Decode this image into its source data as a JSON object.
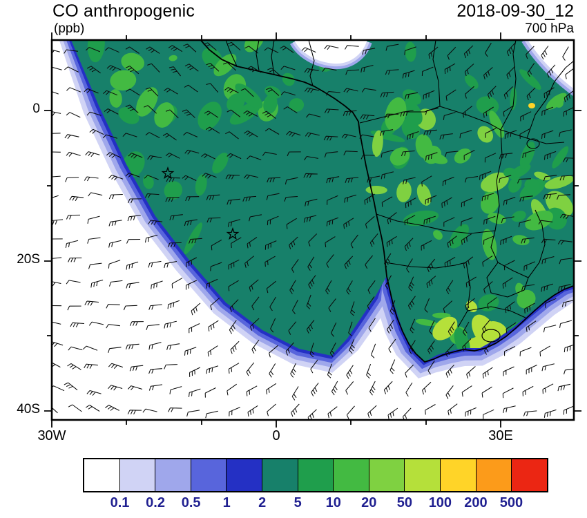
{
  "header": {
    "title": "CO anthropogenic",
    "units_label": "(ppb)",
    "timestamp": "2018-09-30_12",
    "level": "700 hPa"
  },
  "map": {
    "y_axis": {
      "labels": [
        "0",
        "20S",
        "40S"
      ]
    },
    "x_axis": {
      "labels": [
        "30W",
        "0",
        "30E"
      ]
    }
  },
  "colorbar": {
    "levels": [
      "0.1",
      "0.2",
      "0.5",
      "1",
      "2",
      "5",
      "10",
      "20",
      "50",
      "100",
      "200",
      "500"
    ],
    "colors": [
      "#FFFFFF",
      "#D0D3F5",
      "#9FA7EB",
      "#5865DC",
      "#2430C4",
      "#17806A",
      "#1F9E4C",
      "#43BA42",
      "#7FD141",
      "#B5E03A",
      "#FFD428",
      "#FC9B1A",
      "#EB2613"
    ],
    "label_color": "#1F1F90"
  },
  "chart_data": {
    "type": "heatmap",
    "title": "CO anthropogenic",
    "units": "ppb",
    "level": "700 hPa",
    "valid_time": "2018-09-30_12",
    "contour_levels": [
      0.1,
      0.2,
      0.5,
      1,
      2,
      5,
      10,
      20,
      50,
      100,
      200,
      500
    ],
    "palette": [
      "#FFFFFF",
      "#D0D3F5",
      "#9FA7EB",
      "#5865DC",
      "#2430C4",
      "#17806A",
      "#1F9E4C",
      "#43BA42",
      "#7FD141",
      "#B5E03A",
      "#FFD428",
      "#FC9B1A",
      "#EB2613"
    ],
    "x_tick_labels": [
      "30W",
      "0",
      "30E"
    ],
    "y_tick_labels": [
      "0",
      "20S",
      "40S"
    ],
    "region": "Africa and South Atlantic, approx 30W-40E, 9N-41S",
    "overlays": [
      "wind barbs",
      "coastlines",
      "country borders",
      "two star markers"
    ]
  }
}
